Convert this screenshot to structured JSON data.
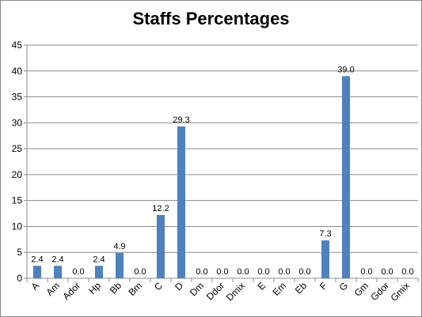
{
  "chart_data": {
    "type": "bar",
    "title": "Staffs Percentages",
    "xlabel": "",
    "ylabel": "",
    "categories": [
      "A",
      "Am",
      "Ador",
      "Hp",
      "Bb",
      "Bm",
      "C",
      "D",
      "Dm",
      "Ddor",
      "Dmix",
      "E",
      "Em",
      "Eb",
      "F",
      "G",
      "Gm",
      "Gdor",
      "Gmix"
    ],
    "values": [
      2.4,
      2.4,
      0.0,
      2.4,
      4.9,
      0.0,
      12.2,
      29.3,
      0.0,
      0.0,
      0.0,
      0.0,
      0.0,
      0.0,
      7.3,
      39.0,
      0.0,
      0.0,
      0.0
    ],
    "data_labels": [
      "2.4",
      "2.4",
      "0.0",
      "2.4",
      "4.9",
      "0.0",
      "12.2",
      "29.3",
      "0.0",
      "0.0",
      "0.0",
      "0.0",
      "0.0",
      "0.0",
      "7.3",
      "39.0",
      "0.0",
      "0.0",
      "0.0"
    ],
    "ylim": [
      0,
      45
    ],
    "yticks": [
      0,
      5,
      10,
      15,
      20,
      25,
      30,
      35,
      40,
      45
    ],
    "grid": true,
    "legend": "none",
    "bar_color": "#4f81bd",
    "grid_color": "#8c8c8c"
  }
}
